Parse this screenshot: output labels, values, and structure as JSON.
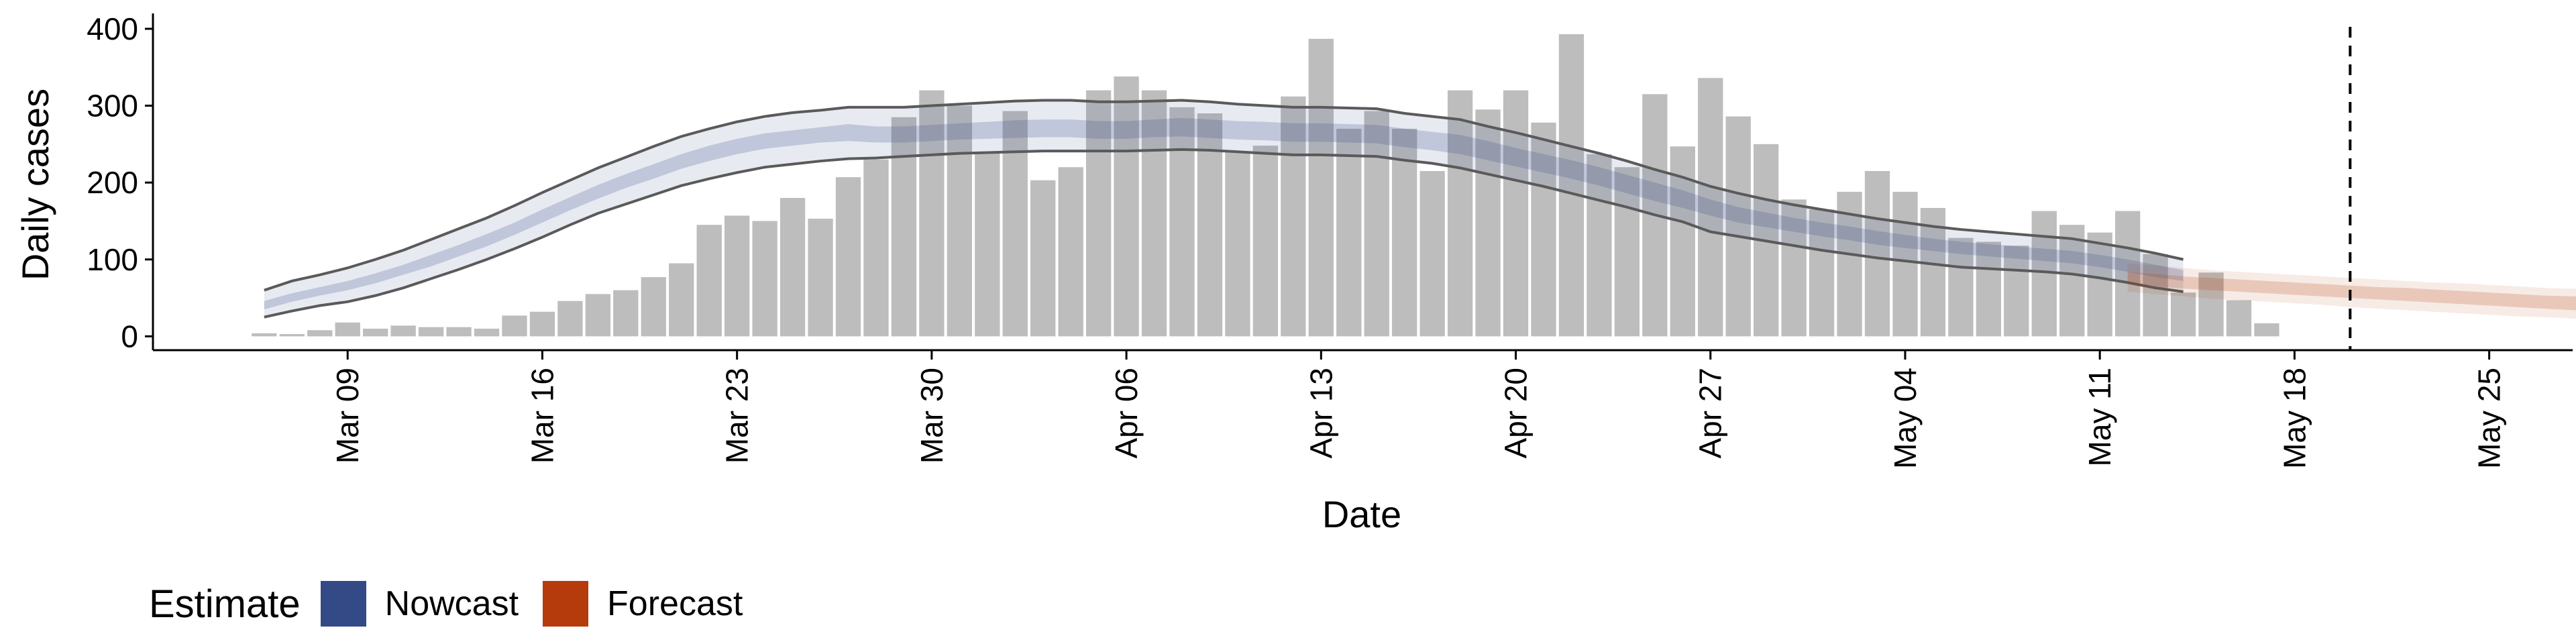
{
  "chart_data": {
    "type": "bar",
    "xlabel": "Date",
    "ylabel": "Daily cases",
    "ylim": [
      -18,
      420
    ],
    "yticks": [
      0,
      100,
      200,
      300,
      400
    ],
    "x_range": [
      "2020-03-02",
      "2020-05-28"
    ],
    "xticks": [
      {
        "date": "2020-03-09",
        "label": "Mar 09"
      },
      {
        "date": "2020-03-16",
        "label": "Mar 16"
      },
      {
        "date": "2020-03-23",
        "label": "Mar 23"
      },
      {
        "date": "2020-03-30",
        "label": "Mar 30"
      },
      {
        "date": "2020-04-06",
        "label": "Apr 06"
      },
      {
        "date": "2020-04-13",
        "label": "Apr 13"
      },
      {
        "date": "2020-04-20",
        "label": "Apr 20"
      },
      {
        "date": "2020-04-27",
        "label": "Apr 27"
      },
      {
        "date": "2020-05-04",
        "label": "May 04"
      },
      {
        "date": "2020-05-11",
        "label": "May 11"
      },
      {
        "date": "2020-05-18",
        "label": "May 18"
      },
      {
        "date": "2020-05-25",
        "label": "May 25"
      }
    ],
    "grid": false,
    "vline_date": "2020-05-20",
    "bar_color": "#bdbdbd",
    "bars": {
      "start_date": "2020-03-06",
      "values": [
        4,
        3,
        8,
        18,
        10,
        14,
        12,
        12,
        10,
        27,
        32,
        46,
        55,
        60,
        77,
        95,
        145,
        157,
        150,
        180,
        153,
        207,
        230,
        285,
        320,
        300,
        240,
        293,
        203,
        220,
        320,
        338,
        320,
        298,
        290,
        240,
        248,
        312,
        387,
        270,
        293,
        270,
        215,
        320,
        295,
        320,
        278,
        393,
        237,
        220,
        315,
        247,
        336,
        286,
        250,
        178,
        165,
        188,
        215,
        188,
        167,
        128,
        123,
        118,
        163,
        145,
        135,
        163,
        107,
        57,
        83,
        47,
        17
      ]
    },
    "nowcast": {
      "color": "#3a4f8a",
      "start_date": "2020-03-06",
      "median": [
        40,
        50,
        58,
        65,
        75,
        86,
        98,
        111,
        125,
        140,
        156,
        172,
        188,
        202,
        214,
        227,
        238,
        247,
        254,
        258,
        262,
        265,
        262,
        262,
        264,
        266,
        268,
        269,
        270,
        270,
        268,
        268,
        270,
        272,
        270,
        268,
        267,
        265,
        265,
        264,
        263,
        258,
        254,
        250,
        242,
        233,
        225,
        217,
        208,
        198,
        188,
        178,
        167,
        158,
        151,
        145,
        139,
        134,
        128,
        123,
        119,
        115,
        112,
        109,
        106,
        103,
        98,
        92,
        85,
        79
      ],
      "inner_lower": [
        35,
        45,
        53,
        60,
        69,
        80,
        91,
        104,
        117,
        132,
        148,
        164,
        179,
        193,
        205,
        218,
        228,
        237,
        244,
        248,
        252,
        254,
        252,
        252,
        254,
        256,
        257,
        258,
        259,
        259,
        257,
        257,
        259,
        260,
        258,
        256,
        255,
        253,
        253,
        252,
        251,
        246,
        242,
        237,
        229,
        221,
        213,
        205,
        196,
        186,
        176,
        167,
        157,
        148,
        142,
        136,
        130,
        125,
        119,
        115,
        111,
        107,
        104,
        101,
        98,
        95,
        90,
        84,
        77,
        72
      ],
      "inner_upper": [
        46,
        56,
        64,
        72,
        82,
        93,
        106,
        119,
        133,
        148,
        165,
        181,
        197,
        211,
        224,
        237,
        248,
        257,
        264,
        268,
        272,
        276,
        273,
        273,
        275,
        277,
        279,
        281,
        282,
        282,
        280,
        280,
        282,
        284,
        282,
        280,
        279,
        277,
        277,
        276,
        275,
        270,
        266,
        262,
        254,
        245,
        237,
        229,
        220,
        210,
        200,
        190,
        178,
        168,
        161,
        154,
        148,
        143,
        137,
        132,
        127,
        123,
        120,
        117,
        114,
        111,
        106,
        100,
        93,
        86
      ],
      "lower": [
        25,
        33,
        40,
        45,
        53,
        63,
        75,
        87,
        100,
        114,
        129,
        145,
        160,
        172,
        184,
        196,
        205,
        213,
        220,
        224,
        228,
        231,
        232,
        234,
        236,
        238,
        239,
        240,
        241,
        241,
        241,
        241,
        242,
        243,
        242,
        240,
        238,
        236,
        236,
        235,
        234,
        229,
        225,
        219,
        211,
        203,
        195,
        186,
        177,
        168,
        158,
        149,
        136,
        130,
        124,
        118,
        112,
        107,
        102,
        98,
        94,
        90,
        88,
        86,
        84,
        81,
        76,
        70,
        63,
        58
      ],
      "upper": [
        60,
        72,
        80,
        89,
        100,
        112,
        126,
        140,
        154,
        170,
        187,
        203,
        219,
        233,
        247,
        260,
        270,
        279,
        286,
        291,
        294,
        298,
        298,
        298,
        300,
        302,
        304,
        306,
        307,
        307,
        305,
        305,
        306,
        307,
        305,
        302,
        300,
        298,
        298,
        297,
        296,
        290,
        286,
        282,
        273,
        265,
        256,
        247,
        238,
        228,
        217,
        207,
        195,
        186,
        178,
        171,
        165,
        159,
        153,
        148,
        143,
        139,
        136,
        133,
        130,
        127,
        121,
        115,
        108,
        100
      ]
    },
    "forecast": {
      "color": "#b53a0c",
      "start_date": "2020-05-12",
      "median": [
        76,
        73,
        70,
        68,
        66,
        64,
        62,
        60,
        58,
        56,
        55,
        53,
        51,
        49,
        47,
        45,
        43,
        42,
        41,
        40
      ],
      "inner_lower": [
        68,
        65,
        62,
        60,
        58,
        56,
        54,
        52,
        50,
        48,
        46,
        44,
        42,
        40,
        38,
        36,
        34,
        33,
        32,
        31
      ],
      "inner_upper": [
        84,
        81,
        78,
        76,
        74,
        72,
        70,
        68,
        66,
        64,
        63,
        61,
        59,
        57,
        55,
        53,
        52,
        51,
        50,
        49
      ],
      "lower": [
        58,
        55,
        52,
        49,
        47,
        45,
        43,
        41,
        38,
        36,
        34,
        32,
        30,
        28,
        26,
        25,
        23,
        22,
        21,
        20
      ],
      "upper": [
        95,
        92,
        89,
        86,
        84,
        82,
        80,
        78,
        76,
        74,
        72,
        70,
        69,
        67,
        65,
        63,
        62,
        61,
        60,
        59
      ]
    }
  },
  "legend": {
    "title": "Estimate",
    "items": [
      {
        "label": "Nowcast",
        "color": "#344a86"
      },
      {
        "label": "Forecast",
        "color": "#b53a0c"
      }
    ]
  }
}
